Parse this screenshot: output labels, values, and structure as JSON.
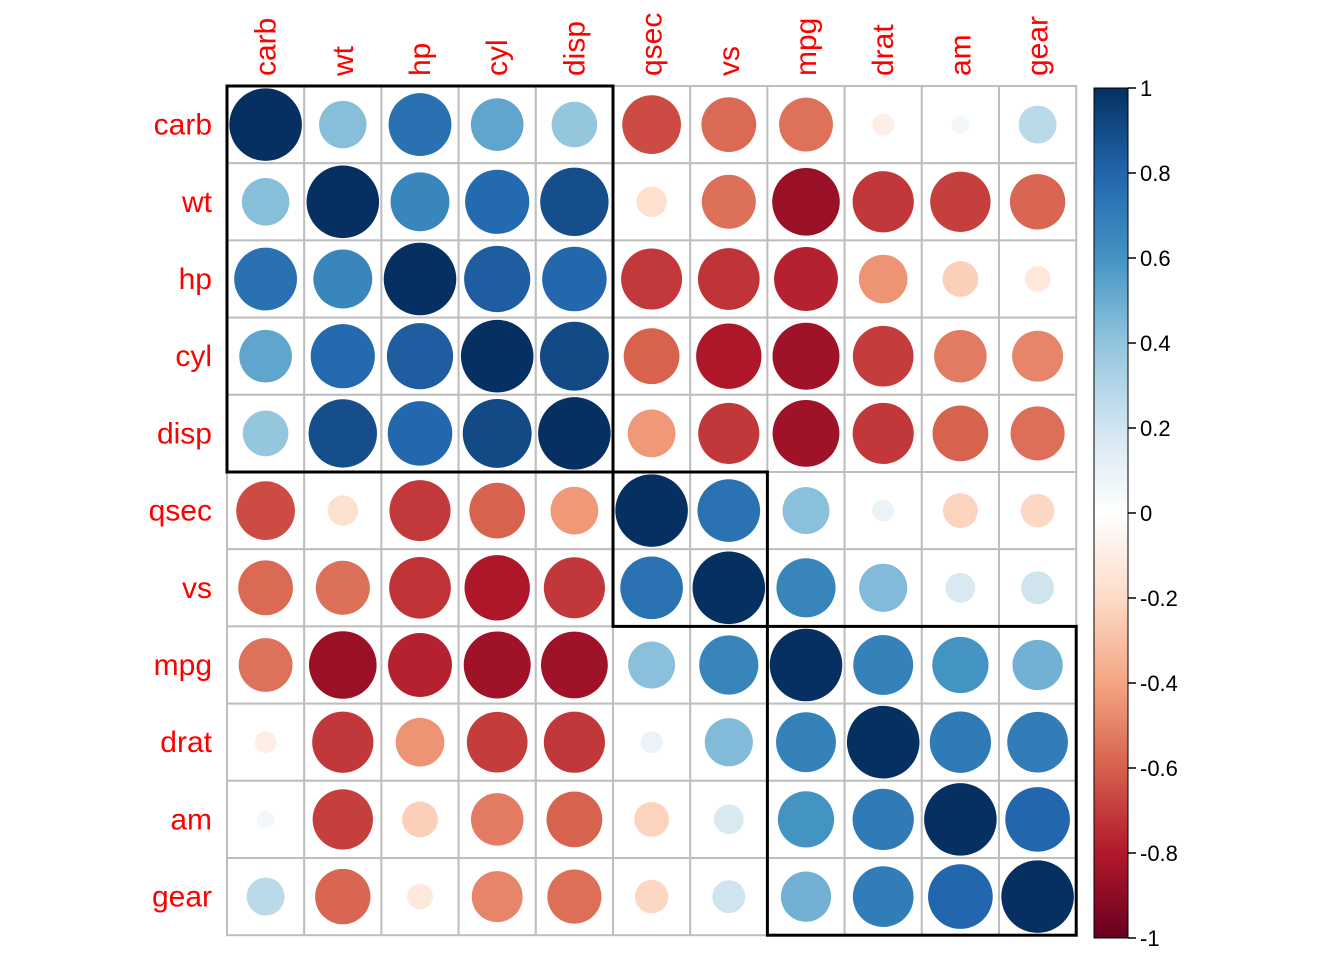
{
  "chart_data": {
    "type": "heatmap",
    "variables": [
      "carb",
      "wt",
      "hp",
      "cyl",
      "disp",
      "qsec",
      "vs",
      "mpg",
      "drat",
      "am",
      "gear"
    ],
    "matrix": [
      [
        1.0,
        0.428,
        0.75,
        0.527,
        0.395,
        -0.656,
        -0.57,
        -0.551,
        -0.091,
        0.058,
        0.274
      ],
      [
        0.428,
        1.0,
        0.659,
        0.782,
        0.888,
        -0.175,
        -0.555,
        -0.868,
        -0.712,
        -0.692,
        -0.583
      ],
      [
        0.75,
        0.659,
        1.0,
        0.832,
        0.791,
        -0.708,
        -0.723,
        -0.776,
        -0.449,
        -0.243,
        -0.126
      ],
      [
        0.527,
        0.782,
        0.832,
        1.0,
        0.902,
        -0.591,
        -0.811,
        -0.852,
        -0.7,
        -0.523,
        -0.493
      ],
      [
        0.395,
        0.888,
        0.791,
        0.902,
        1.0,
        -0.434,
        -0.71,
        -0.848,
        -0.71,
        -0.591,
        -0.556
      ],
      [
        -0.656,
        -0.175,
        -0.708,
        -0.591,
        -0.434,
        1.0,
        0.745,
        0.419,
        0.091,
        -0.23,
        -0.213
      ],
      [
        -0.57,
        -0.555,
        -0.723,
        -0.811,
        -0.71,
        0.745,
        1.0,
        0.664,
        0.44,
        0.168,
        0.206
      ],
      [
        -0.551,
        -0.868,
        -0.776,
        -0.852,
        -0.848,
        0.419,
        0.664,
        1.0,
        0.681,
        0.6,
        0.48
      ],
      [
        -0.091,
        -0.712,
        -0.449,
        -0.7,
        -0.71,
        0.091,
        0.44,
        0.681,
        1.0,
        0.713,
        0.7
      ],
      [
        0.058,
        -0.692,
        -0.243,
        -0.523,
        -0.591,
        -0.23,
        0.168,
        0.6,
        0.713,
        1.0,
        0.794
      ],
      [
        0.274,
        -0.583,
        -0.126,
        -0.493,
        -0.556,
        -0.213,
        0.206,
        0.48,
        0.7,
        0.794,
        1.0
      ]
    ],
    "clusters": [
      {
        "start": 0,
        "end": 4
      },
      {
        "start": 5,
        "end": 6
      },
      {
        "start": 7,
        "end": 10
      }
    ],
    "colorbar": {
      "range": [
        -1,
        1
      ],
      "ticks": [
        "1",
        "0.8",
        "0.6",
        "0.4",
        "0.2",
        "0",
        "-0.2",
        "-0.4",
        "-0.6",
        "-0.8",
        "-1"
      ]
    },
    "label_color": "#ff0000",
    "grid_color": "#bebebe",
    "cluster_border_color": "#000000",
    "palette": [
      "#67001F",
      "#B2182B",
      "#D6604D",
      "#F4A582",
      "#FDDBC7",
      "#FFFFFF",
      "#D1E5F0",
      "#92C5DE",
      "#4393C3",
      "#2166AC",
      "#053061"
    ]
  }
}
